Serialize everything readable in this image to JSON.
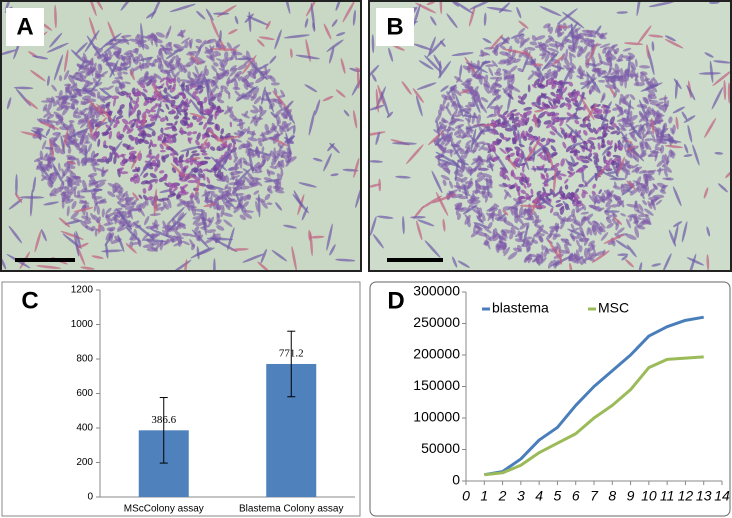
{
  "figure": {
    "labels": [
      "A",
      "B",
      "C",
      "D"
    ]
  },
  "chart_data": [
    {
      "type": "bar",
      "categories": [
        "MScColony assay",
        "Blastema Colony assay"
      ],
      "values": [
        386.6,
        771.2
      ],
      "errors": [
        190,
        190
      ],
      "color": "#4f81bd",
      "ylim": [
        0,
        1200
      ],
      "yticks": [
        0,
        200,
        400,
        600,
        800,
        1000,
        1200
      ]
    },
    {
      "type": "line",
      "x": [
        1,
        2,
        3,
        4,
        5,
        6,
        7,
        8,
        9,
        10,
        11,
        12,
        13
      ],
      "series": [
        {
          "name": "blastema",
          "color": "#4a7ebb",
          "values": [
            10000,
            15000,
            35000,
            65000,
            85000,
            120000,
            150000,
            175000,
            200000,
            230000,
            245000,
            255000,
            260000
          ]
        },
        {
          "name": "MSC",
          "color": "#9bbb59",
          "values": [
            10000,
            13000,
            25000,
            45000,
            60000,
            75000,
            100000,
            120000,
            145000,
            180000,
            193000,
            195000,
            197000
          ]
        }
      ],
      "xlim": [
        0,
        14
      ],
      "xticks": [
        0,
        1,
        2,
        3,
        4,
        5,
        6,
        7,
        8,
        9,
        10,
        11,
        12,
        13,
        14
      ],
      "ylim": [
        0,
        300000
      ],
      "yticks": [
        0,
        50000,
        100000,
        150000,
        200000,
        250000,
        300000
      ]
    }
  ]
}
